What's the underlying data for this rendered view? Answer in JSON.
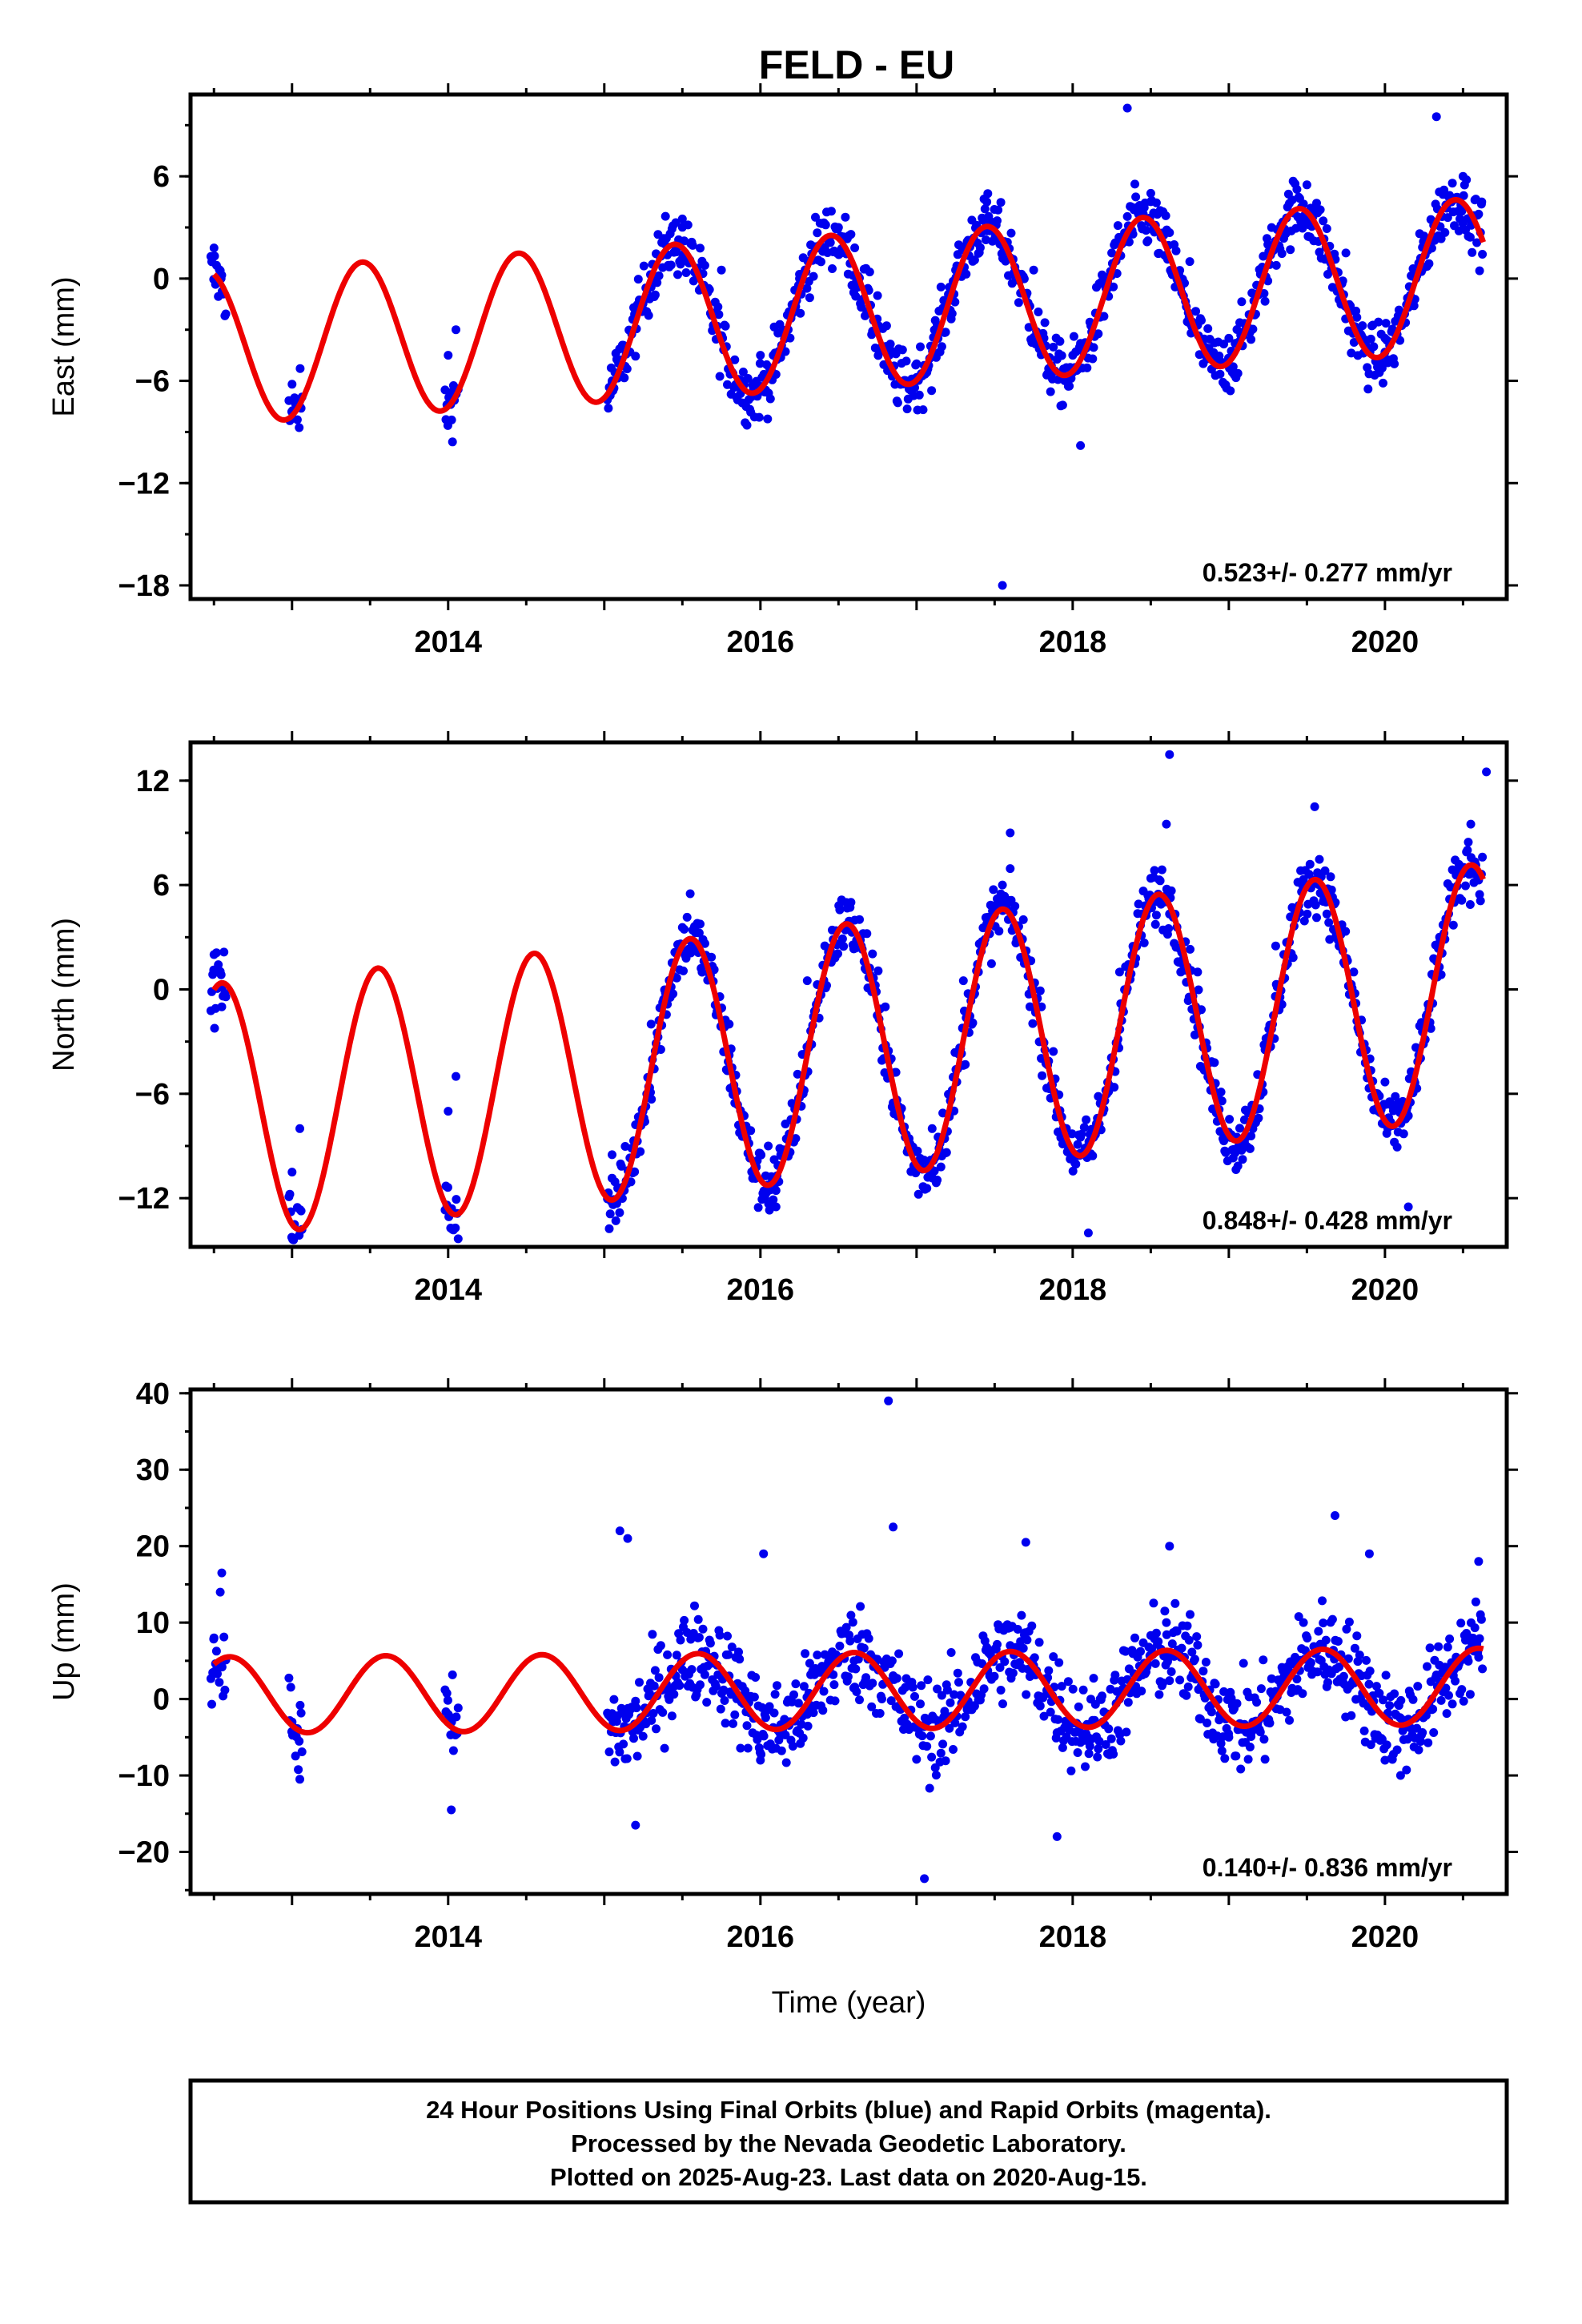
{
  "title": "FELD - EU",
  "footer": {
    "lines": [
      "24 Hour Positions Using Final Orbits (blue) and Rapid Orbits (magenta).",
      "Processed by the Nevada Geodetic Laboratory.",
      "Plotted on 2025-Aug-23. Last data on 2020-Aug-15."
    ]
  },
  "colors": {
    "points": "#0000ee",
    "model": "#ee0000",
    "frame": "#000000"
  },
  "chart_data": [
    {
      "type": "scatter",
      "ylabel": "East (mm)",
      "xlabel": "",
      "xlim": [
        2012.35,
        2020.78
      ],
      "ylim": [
        -18.8,
        10.8
      ],
      "xticks": [
        "2014",
        "2016",
        "2018",
        "2020"
      ],
      "yticks": [
        "6",
        "0",
        "-6",
        "-12",
        "-18"
      ],
      "rate_label": "0.523+/- 0.277 mm/yr",
      "grid": false,
      "series": [
        {
          "values": [
            [
              2012.5,
              1.8
            ],
            [
              2012.55,
              0.2
            ],
            [
              2013.0,
              -6.2
            ],
            [
              2013.05,
              -7.5
            ],
            [
              2014.0,
              -4.5
            ],
            [
              2014.05,
              -3.0
            ],
            [
              2015.05,
              -6.0
            ],
            [
              2015.3,
              -0.5
            ],
            [
              2015.5,
              3.5
            ],
            [
              2015.75,
              0.5
            ],
            [
              2016.0,
              -4.5
            ],
            [
              2016.25,
              0.0
            ],
            [
              2016.5,
              3.0
            ],
            [
              2016.75,
              -1.0
            ],
            [
              2017.0,
              -5.0
            ],
            [
              2017.25,
              0.5
            ],
            [
              2017.45,
              4.5
            ],
            [
              2017.55,
              -18.0
            ],
            [
              2017.75,
              0.5
            ],
            [
              2018.0,
              -4.5
            ],
            [
              2018.05,
              -9.8
            ],
            [
              2018.25,
              1.5
            ],
            [
              2018.35,
              10.0
            ],
            [
              2018.5,
              5.0
            ],
            [
              2018.75,
              1.0
            ],
            [
              2019.0,
              -3.5
            ],
            [
              2019.25,
              2.0
            ],
            [
              2019.5,
              5.5
            ],
            [
              2019.75,
              1.5
            ],
            [
              2020.0,
              -3.5
            ],
            [
              2020.25,
              2.5
            ],
            [
              2020.33,
              9.5
            ],
            [
              2020.5,
              6.0
            ],
            [
              2020.62,
              4.5
            ]
          ]
        },
        {
          "name": "",
          "model": {
            "type": "sinusoid",
            "offset": -2.2,
            "reference_year": 2016.0,
            "rate_mm_per_yr": 0.523,
            "amplitude": 4.5,
            "phase_peak": 0.45
          }
        }
      ]
    },
    {
      "type": "scatter",
      "ylabel": "North (mm)",
      "xlabel": "",
      "xlim": [
        2012.35,
        2020.78
      ],
      "ylim": [
        -14.8,
        14.2
      ],
      "xticks": [
        "2014",
        "2016",
        "2018",
        "2020"
      ],
      "yticks": [
        "12",
        "6",
        "0",
        "-6",
        "-12"
      ],
      "rate_label": "0.848+/- 0.428 mm/yr",
      "grid": false,
      "series": [
        {
          "values": [
            [
              2012.5,
              2.0
            ],
            [
              2012.55,
              -1.0
            ],
            [
              2013.0,
              -10.5
            ],
            [
              2013.05,
              -8.0
            ],
            [
              2014.0,
              -7.0
            ],
            [
              2014.05,
              -5.0
            ],
            [
              2015.05,
              -9.5
            ],
            [
              2015.3,
              -2.0
            ],
            [
              2015.55,
              5.5
            ],
            [
              2015.8,
              -2.0
            ],
            [
              2016.05,
              -9.0
            ],
            [
              2016.1,
              -12.5
            ],
            [
              2016.3,
              0.5
            ],
            [
              2016.55,
              5.0
            ],
            [
              2016.8,
              -1.0
            ],
            [
              2017.1,
              -8.0
            ],
            [
              2017.3,
              0.5
            ],
            [
              2017.55,
              6.0
            ],
            [
              2017.6,
              9.0
            ],
            [
              2017.8,
              -1.0
            ],
            [
              2018.05,
              -8.5
            ],
            [
              2018.1,
              -14.0
            ],
            [
              2018.3,
              1.0
            ],
            [
              2018.6,
              9.5
            ],
            [
              2018.62,
              13.5
            ],
            [
              2018.8,
              1.0
            ],
            [
              2019.1,
              -7.5
            ],
            [
              2019.3,
              2.5
            ],
            [
              2019.55,
              10.5
            ],
            [
              2019.8,
              1.0
            ],
            [
              2020.1,
              -6.5
            ],
            [
              2020.15,
              -12.5
            ],
            [
              2020.35,
              3.0
            ],
            [
              2020.55,
              9.5
            ],
            [
              2020.65,
              12.5
            ]
          ]
        },
        {
          "name": "",
          "model": {
            "type": "sinusoid",
            "offset": -4.0,
            "reference_year": 2016.0,
            "rate_mm_per_yr": 0.848,
            "amplitude": 7.3,
            "phase_peak": 0.55
          }
        }
      ]
    },
    {
      "type": "scatter",
      "ylabel": "Up (mm)",
      "xlabel": "Time (year)",
      "xlim": [
        2012.35,
        2020.78
      ],
      "ylim": [
        -25.5,
        40.5
      ],
      "xticks": [
        "2014",
        "2016",
        "2018",
        "2020"
      ],
      "yticks": [
        "40",
        "30",
        "20",
        "10",
        "0",
        "-10",
        "-20"
      ],
      "rate_label": "0.140+/- 0.836 mm/yr",
      "grid": false,
      "series": [
        {
          "values": [
            [
              2012.5,
              8.0
            ],
            [
              2012.55,
              16.5
            ],
            [
              2013.0,
              -3.0
            ],
            [
              2013.05,
              -10.5
            ],
            [
              2014.0,
              -2.0
            ],
            [
              2014.02,
              -14.5
            ],
            [
              2015.1,
              22.0
            ],
            [
              2015.15,
              21.0
            ],
            [
              2015.2,
              -16.5
            ],
            [
              2015.6,
              8.0
            ],
            [
              2016.0,
              -8.0
            ],
            [
              2016.02,
              19.0
            ],
            [
              2016.3,
              -2.0
            ],
            [
              2016.6,
              5.0
            ],
            [
              2016.82,
              39.0
            ],
            [
              2016.85,
              22.5
            ],
            [
              2017.05,
              -23.5
            ],
            [
              2017.3,
              0.0
            ],
            [
              2017.6,
              7.0
            ],
            [
              2017.7,
              20.5
            ],
            [
              2017.9,
              -18.0
            ],
            [
              2018.3,
              0.0
            ],
            [
              2018.6,
              10.0
            ],
            [
              2018.62,
              20.0
            ],
            [
              2019.0,
              -5.0
            ],
            [
              2019.3,
              1.0
            ],
            [
              2019.6,
              7.0
            ],
            [
              2019.68,
              24.0
            ],
            [
              2019.9,
              19.0
            ],
            [
              2020.1,
              -10.0
            ],
            [
              2020.3,
              0.0
            ],
            [
              2020.55,
              8.0
            ],
            [
              2020.6,
              18.0
            ]
          ]
        },
        {
          "name": "",
          "model": {
            "type": "sinusoid",
            "offset": 1.0,
            "reference_year": 2016.0,
            "rate_mm_per_yr": 0.14,
            "amplitude": 5.0,
            "phase_peak": 0.6
          }
        }
      ]
    }
  ]
}
